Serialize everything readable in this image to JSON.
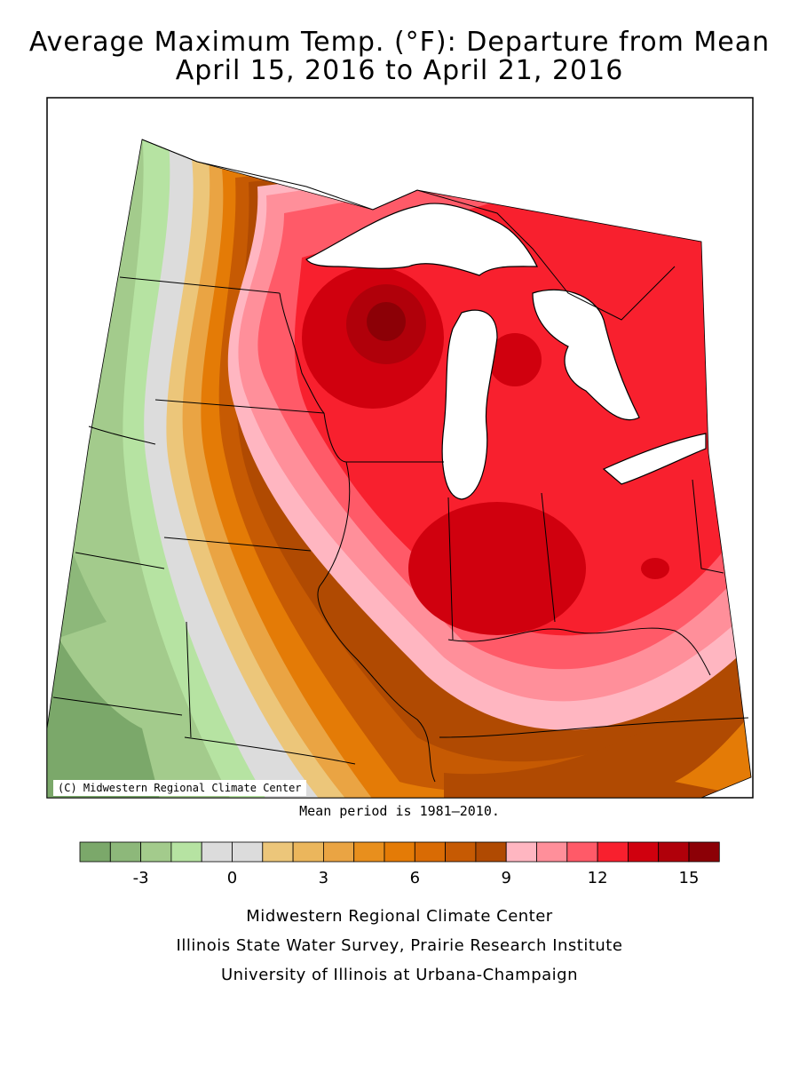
{
  "title": {
    "line1": "Average Maximum Temp. (°F): Departure from Mean",
    "line2": "April 15, 2016 to April 21, 2016"
  },
  "map": {
    "copyright": "(C) Midwestern Regional Climate Center",
    "mean_period": "Mean period is 1981–2010.",
    "lake_color": "#ffffff",
    "border_color": "#000000"
  },
  "legend": {
    "colors": [
      "#7ba86a",
      "#8db87a",
      "#a3cb8c",
      "#b6e3a2",
      "#dcdcdc",
      "#dcdcdc",
      "#ecc67a",
      "#ebb65c",
      "#eaa443",
      "#e88f1d",
      "#e47b06",
      "#d96b04",
      "#c65a03",
      "#b04a02",
      "#ffb6c1",
      "#ff8f9a",
      "#ff5a68",
      "#f8202e",
      "#d0000e",
      "#b0000a",
      "#8c0006"
    ],
    "tick_labels": [
      "-3",
      "0",
      "3",
      "6",
      "9",
      "12",
      "15"
    ]
  },
  "footer": {
    "line1": "Midwestern Regional Climate Center",
    "line2": "Illinois State Water Survey, Prairie Research Institute",
    "line3": "University of Illinois at Urbana-Champaign"
  }
}
